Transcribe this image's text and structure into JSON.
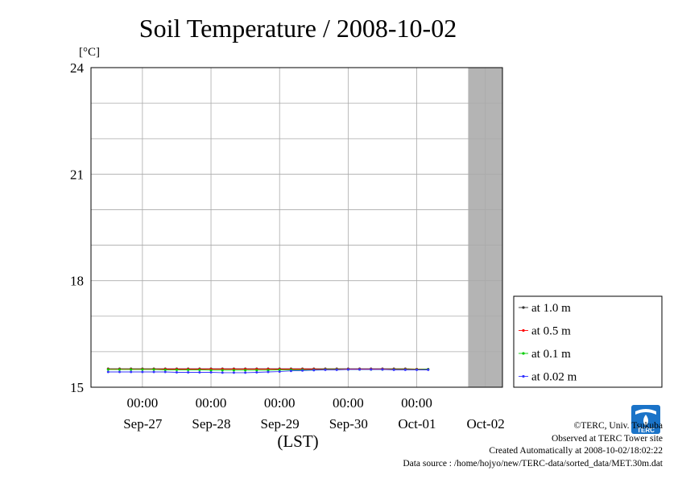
{
  "chart_data": {
    "type": "line",
    "title": "Soil Temperature / 2008-10-02",
    "ylabel": "[°C]",
    "xlabel": "(LST)",
    "ylim": [
      15,
      24
    ],
    "yticks": [
      "15",
      "18",
      "21",
      "24"
    ],
    "x_time_labels": [
      "00:00",
      "00:00",
      "00:00",
      "00:00",
      "00:00"
    ],
    "x_date_labels": [
      "Sep-27",
      "Sep-28",
      "Sep-29",
      "Sep-30",
      "Oct-01",
      "Oct-02"
    ],
    "x_range": [
      "2008-09-26 06:00",
      "2008-10-02 06:00"
    ],
    "grid": true,
    "legend_position": "right",
    "shaded_region": [
      "2008-10-01 18:00",
      "2008-10-02 06:00"
    ],
    "x": [
      "2008-09-26 12:00",
      "2008-09-26 16:00",
      "2008-09-26 20:00",
      "2008-09-27 00:00",
      "2008-09-27 04:00",
      "2008-09-27 08:00",
      "2008-09-27 12:00",
      "2008-09-27 16:00",
      "2008-09-27 20:00",
      "2008-09-28 00:00",
      "2008-09-28 04:00",
      "2008-09-28 08:00",
      "2008-09-28 12:00",
      "2008-09-28 16:00",
      "2008-09-28 20:00",
      "2008-09-29 00:00",
      "2008-09-29 04:00",
      "2008-09-29 08:00",
      "2008-09-29 12:00",
      "2008-09-29 16:00",
      "2008-09-29 20:00",
      "2008-09-30 00:00",
      "2008-09-30 04:00",
      "2008-09-30 08:00",
      "2008-09-30 12:00",
      "2008-09-30 16:00",
      "2008-09-30 20:00",
      "2008-10-01 00:00",
      "2008-10-01 04:00"
    ],
    "series": [
      {
        "name": "at 1.0 m",
        "color": "#333333",
        "values": [
          15.52,
          15.52,
          15.52,
          15.52,
          15.52,
          15.52,
          15.52,
          15.52,
          15.52,
          15.52,
          15.52,
          15.52,
          15.52,
          15.52,
          15.52,
          15.52,
          15.52,
          15.52,
          15.52,
          15.52,
          15.52,
          15.52,
          15.52,
          15.52,
          15.52,
          15.52,
          15.52,
          15.51,
          15.51
        ]
      },
      {
        "name": "at 0.5 m",
        "color": "#ff0000",
        "values": [
          15.51,
          15.51,
          15.51,
          15.51,
          15.51,
          15.51,
          15.51,
          15.51,
          15.51,
          15.51,
          15.51,
          15.51,
          15.51,
          15.51,
          15.51,
          15.51,
          15.51,
          15.51,
          15.51,
          15.51,
          15.51,
          15.51,
          15.51,
          15.51,
          15.51,
          15.51,
          15.51,
          15.51,
          15.5
        ]
      },
      {
        "name": "at 0.1 m",
        "color": "#00cc00",
        "values": [
          15.5,
          15.5,
          15.5,
          15.5,
          15.5,
          15.49,
          15.49,
          15.49,
          15.49,
          15.48,
          15.48,
          15.48,
          15.48,
          15.48,
          15.48,
          15.49,
          15.49,
          15.49,
          15.49,
          15.5,
          15.5,
          15.5,
          15.5,
          15.5,
          15.5,
          15.5,
          15.5,
          15.5,
          15.5
        ]
      },
      {
        "name": "at 0.02 m",
        "color": "#3333ff",
        "values": [
          15.43,
          15.43,
          15.43,
          15.43,
          15.43,
          15.43,
          15.42,
          15.42,
          15.42,
          15.42,
          15.41,
          15.41,
          15.41,
          15.42,
          15.43,
          15.44,
          15.46,
          15.47,
          15.48,
          15.49,
          15.49,
          15.5,
          15.5,
          15.5,
          15.5,
          15.49,
          15.49,
          15.49,
          15.49
        ]
      }
    ]
  },
  "footer": {
    "copyright": "©TERC, Univ. Tsukuba",
    "observed": "Observed at TERC Tower site",
    "created": "Created Automatically at 2008-10-02/18:02:22",
    "source": "Data source : /home/hojyo/new/TERC-data/sorted_data/MET.30m.dat"
  },
  "logo": {
    "label": "TERC",
    "color": "#1a73c8"
  }
}
